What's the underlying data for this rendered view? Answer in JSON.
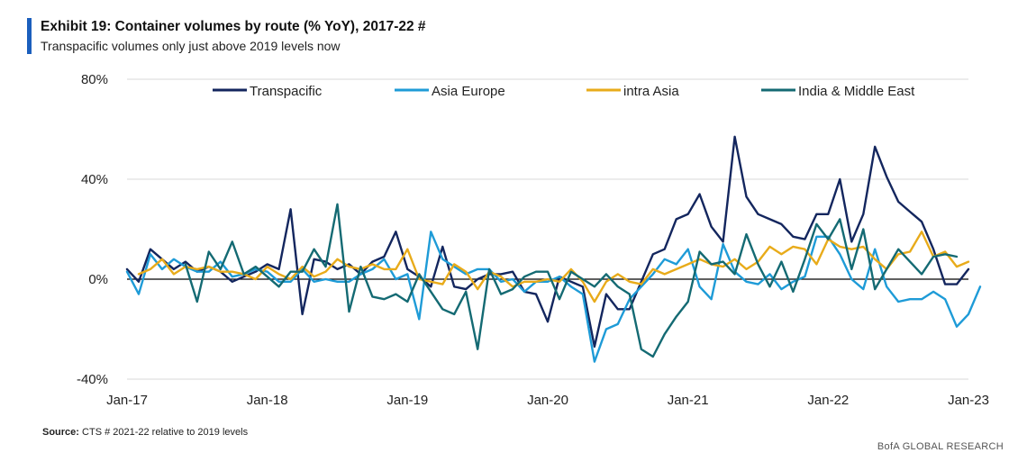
{
  "header": {
    "title": "Exhibit 19: Container volumes by route (% YoY), 2017-22 #",
    "subtitle": "Transpacific volumes only just above 2019 levels now"
  },
  "footer": {
    "source_label": "Source:",
    "source_text": "CTS  # 2021-22  relative to 2019 levels",
    "credit": "BofA GLOBAL RESEARCH"
  },
  "colors": {
    "accent": "#1b5fbd",
    "grid": "#d9d9d9",
    "zero_line": "#000000"
  },
  "chart_data": {
    "type": "line",
    "title": "Container volumes by route (% YoY), 2017-22 #",
    "xlabel": "",
    "ylabel": "",
    "ylim": [
      -40,
      80
    ],
    "yticks": [
      -40,
      0,
      40,
      80
    ],
    "ytick_labels": [
      "-40%",
      "0%",
      "40%",
      "80%"
    ],
    "xtick_labels": [
      "Jan-17",
      "Jan-18",
      "Jan-19",
      "Jan-20",
      "Jan-21",
      "Jan-22",
      "Jan-23"
    ],
    "xtick_months": [
      0,
      12,
      24,
      36,
      48,
      60,
      72
    ],
    "x_start": "Jan-17",
    "x_unit": "month index (0 = Jan-17)",
    "legend_position": "top",
    "series": [
      {
        "name": "Transpacific",
        "color": "#13265e",
        "values": [
          4,
          -1,
          12,
          8,
          4,
          7,
          3,
          5,
          3,
          -1,
          1,
          3,
          6,
          4,
          28,
          -14,
          8,
          7,
          4,
          6,
          2,
          7,
          9,
          19,
          4,
          1,
          -3,
          13,
          -3,
          -4,
          0,
          2,
          2,
          3,
          -5,
          -6,
          -17,
          1,
          -1,
          -3,
          -27,
          -6,
          -12,
          -12,
          -1,
          10,
          12,
          24,
          26,
          34,
          21,
          15,
          57,
          33,
          26,
          24,
          22,
          17,
          16,
          26,
          26,
          40,
          15,
          26,
          53,
          41,
          31,
          27,
          23,
          12,
          -2,
          -2,
          4
        ],
        "x_offset": 0
      },
      {
        "name": "Asia Europe",
        "color": "#1e9bd7",
        "values": [
          3,
          -6,
          10,
          4,
          8,
          5,
          3,
          3,
          7,
          1,
          2,
          4,
          3,
          -1,
          -1,
          4,
          -1,
          0,
          -1,
          -1,
          2,
          4,
          8,
          0,
          2,
          -16,
          19,
          8,
          5,
          2,
          4,
          4,
          -1,
          0,
          -5,
          -1,
          -1,
          1,
          -3,
          -6,
          -33,
          -20,
          -18,
          -8,
          -3,
          2,
          8,
          6,
          12,
          -3,
          -8,
          14,
          3,
          -1,
          -2,
          2,
          -4,
          -1,
          1,
          17,
          17,
          10,
          0,
          -4,
          12,
          -3,
          -9,
          -8,
          -8,
          -5,
          -8,
          -19,
          -14,
          -3
        ],
        "x_offset": 0
      },
      {
        "name": "intra Asia",
        "color": "#e8ab1a",
        "values": [
          2,
          4,
          8,
          2,
          5,
          4,
          5,
          3,
          3,
          2,
          0,
          5,
          2,
          0,
          5,
          1,
          3,
          8,
          5,
          4,
          6,
          4,
          4,
          12,
          0,
          -1,
          -2,
          6,
          3,
          -4,
          3,
          1,
          -3,
          -1,
          -1,
          0,
          -1,
          4,
          -1,
          -9,
          -1,
          2,
          -1,
          -2,
          4,
          2,
          4,
          6,
          8,
          6,
          5,
          8,
          4,
          7,
          13,
          10,
          13,
          12,
          6,
          16,
          13,
          12,
          13,
          8,
          4,
          10,
          11,
          19,
          9,
          11,
          5,
          7
        ],
        "x_offset": 1
      },
      {
        "name": "India & Middle East",
        "color": "#146a73",
        "values": [
          6,
          -9,
          11,
          4,
          15,
          2,
          5,
          1,
          -3,
          3,
          3,
          12,
          5,
          30,
          -13,
          5,
          -7,
          -8,
          -6,
          -9,
          2,
          -5,
          -12,
          -14,
          -5,
          -28,
          4,
          -6,
          -4,
          1,
          3,
          3,
          -8,
          3,
          0,
          -3,
          2,
          -3,
          -6,
          -28,
          -31,
          -22,
          -15,
          -9,
          11,
          6,
          7,
          2,
          18,
          6,
          -3,
          7,
          -5,
          8,
          22,
          16,
          24,
          4,
          20,
          -4,
          4,
          12,
          7,
          2,
          9,
          10,
          9
        ],
        "x_offset": 5
      }
    ]
  }
}
